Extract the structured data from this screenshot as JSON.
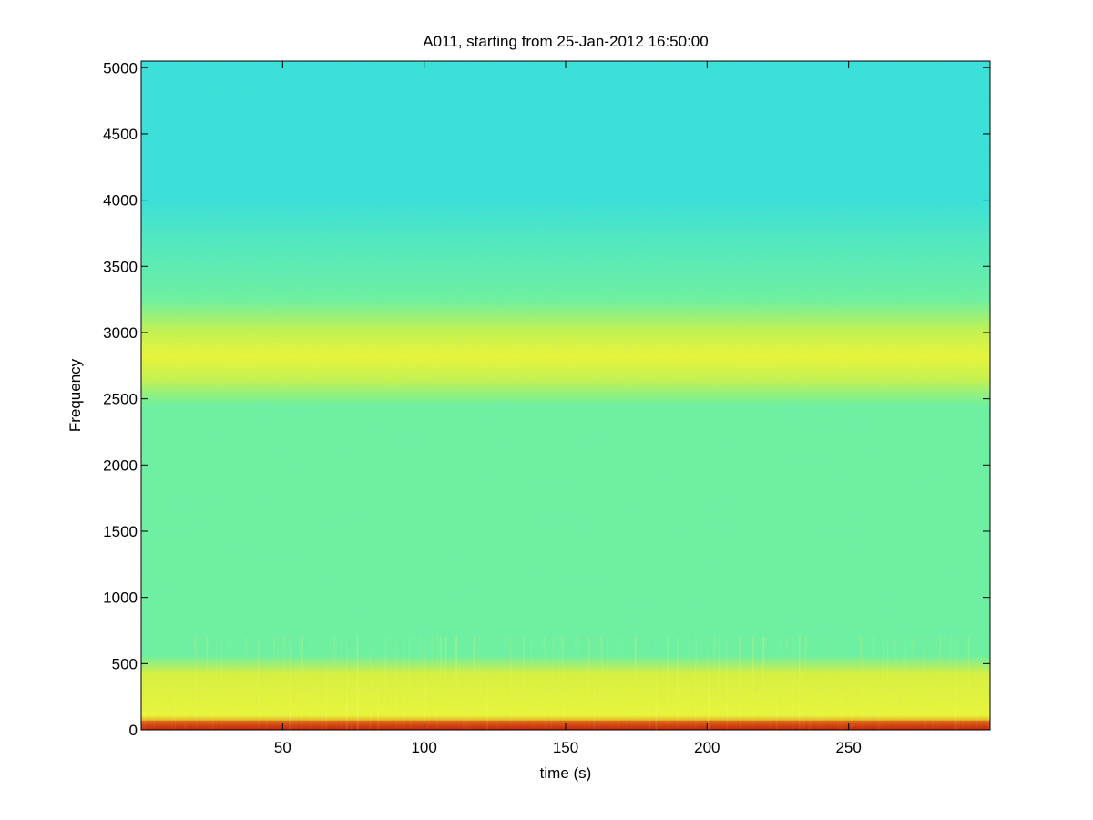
{
  "chart_data": {
    "type": "heatmap",
    "title": "A011, starting from 25-Jan-2012 16:50:00",
    "xlabel": "time (s)",
    "ylabel": "Frequency",
    "xlim": [
      0,
      300
    ],
    "ylim": [
      0,
      5050
    ],
    "xticks": [
      50,
      100,
      150,
      200,
      250
    ],
    "yticks": [
      0,
      500,
      1000,
      1500,
      2000,
      2500,
      3000,
      3500,
      4000,
      4500,
      5000
    ],
    "grid": false,
    "colormap": "jet",
    "bands": [
      {
        "f_from": 0,
        "f_to": 80,
        "level": "high"
      },
      {
        "f_from": 80,
        "f_to": 500,
        "level": "elevated"
      },
      {
        "f_from": 500,
        "f_to": 2600,
        "level": "medium"
      },
      {
        "f_from": 2600,
        "f_to": 3050,
        "level": "elevated"
      },
      {
        "f_from": 3050,
        "f_to": 3700,
        "level": "medium"
      },
      {
        "f_from": 3700,
        "f_to": 5050,
        "level": "low"
      }
    ]
  },
  "colors": {
    "low": "#3be0d8",
    "medium": "#6ef0a0",
    "elevated": "#e8f53a",
    "high": "#c81e0c",
    "background": "#ffffff"
  }
}
